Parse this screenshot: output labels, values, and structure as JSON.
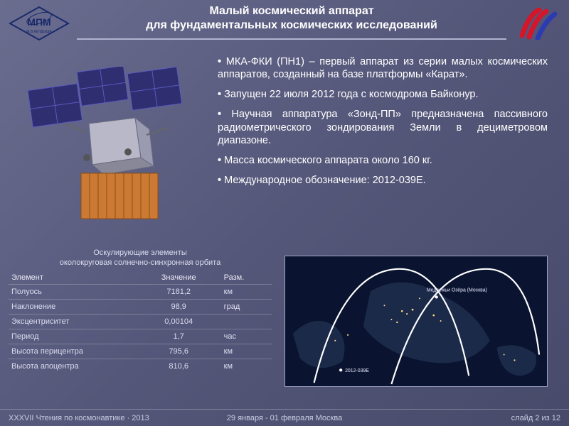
{
  "title": {
    "line1": "Малый космический аппарат",
    "line2": "для фундаментальных космических исследований",
    "fontsize": 16,
    "color": "#ffffff"
  },
  "logo_left": {
    "text": "МПМ",
    "subtext": "М.В.КЕЛДЫША",
    "stroke": "#1a2a6a"
  },
  "logo_right": {
    "stripe_colors": [
      "#d4152a",
      "#d4152a",
      "#2c3cb0"
    ]
  },
  "bullets": [
    "МКА-ФКИ (ПН1) – первый аппарат из серии малых космических аппаратов, созданный на базе платформы «Карат».",
    "Запущен 22 июля 2012 года с космодрома Байконур.",
    "Научная аппаратура «Зонд-ПП» предназначена пассивного радиометрического зондирования Земли в дециметровом диапазоне.",
    "Масса космического аппарата около 160 кг.",
    "Международное обозначение: 2012-039E."
  ],
  "bullets_style": {
    "fontsize": 14.5,
    "color": "#ffffff",
    "align": "justify"
  },
  "satellite": {
    "panel_color": "#2e2e70",
    "panel_border": "#5a5ac0",
    "body_color": "#b8b8c8",
    "radiator_color": "#cc7a33",
    "radiator_grid": "#8a4e1a"
  },
  "table": {
    "caption_line1": "Оскулирующие элементы",
    "caption_line2": "околокруговая солнечно-синхронная орбита",
    "headers": [
      "Элемент",
      "Значение",
      "Разм."
    ],
    "rows": [
      [
        "Полуось",
        "7181,2",
        "км"
      ],
      [
        "Наклонение",
        "98,9",
        "град"
      ],
      [
        "Эксцентриситет",
        "0,00104",
        ""
      ],
      [
        "Период",
        "1,7",
        "час"
      ],
      [
        "Высота перицентра",
        "795,6",
        "км"
      ],
      [
        "Высота апоцентра",
        "810,6",
        "км"
      ]
    ],
    "fontsize": 11,
    "text_color": "#dcdcf0",
    "rule_color": "rgba(255,255,255,0.22)"
  },
  "map": {
    "bg_color": "#0a1430",
    "land_color": "#1c2a4a",
    "lights_color": "#ffdd88",
    "track_color": "#ffffff",
    "label_sat": "2012-039E",
    "label_station": "Медвежьи Озёра (Москва)",
    "border_color": "#9ea2c4"
  },
  "footer": {
    "left": "XXXVII Чтения по космонавтике · 2013",
    "mid": "29 января - 01 февраля   Москва",
    "right_prefix": "слайд  ",
    "page_current": 2,
    "page_sep": " из ",
    "page_total": 12,
    "fontsize": 11,
    "color": "#c9cbe0"
  },
  "page_bg": "linear-gradient(135deg,#6a6d8f 0%,#55577a 50%,#484a6a 100%)"
}
